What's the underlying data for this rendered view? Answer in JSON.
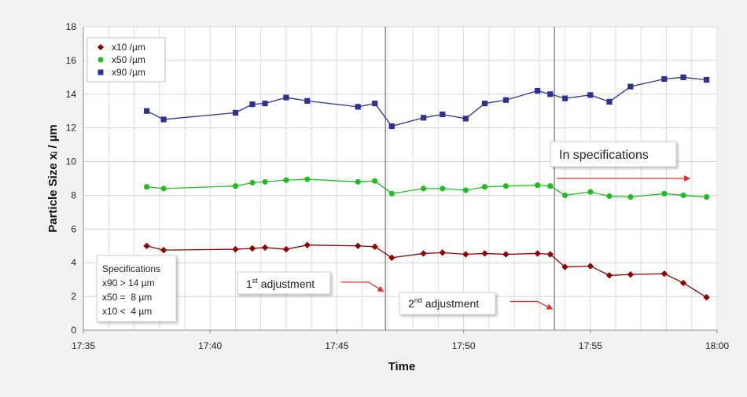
{
  "chart_data": {
    "type": "line",
    "xlabel": "Time",
    "ylabel": "Particle Size xᵢ / µm",
    "ylim": [
      0,
      18
    ],
    "xlim": [
      "17:35",
      "18:00"
    ],
    "xticks": [
      "17:35",
      "17:40",
      "17:45",
      "17:50",
      "17:55",
      "18:00"
    ],
    "yticks": [
      0,
      2,
      4,
      6,
      8,
      10,
      12,
      14,
      16,
      18
    ],
    "grid": true,
    "legend_position": "top-left",
    "series": [
      {
        "name": "x10 /µm",
        "marker": "diamond",
        "color": "#8b0000",
        "x": [
          "17:37:30",
          "17:38:10",
          "17:41:00",
          "17:41:40",
          "17:42:10",
          "17:43:00",
          "17:43:50",
          "17:45:50",
          "17:46:30",
          "17:47:10",
          "17:48:25",
          "17:49:10",
          "17:50:05",
          "17:50:50",
          "17:51:40",
          "17:52:55",
          "17:53:25",
          "17:54:00",
          "17:55:00",
          "17:55:45",
          "17:56:35",
          "17:57:55",
          "17:58:40",
          "17:59:35"
        ],
        "values": [
          5.0,
          4.75,
          4.8,
          4.85,
          4.9,
          4.8,
          5.05,
          5.0,
          4.95,
          4.3,
          4.55,
          4.6,
          4.5,
          4.55,
          4.5,
          4.55,
          4.5,
          3.75,
          3.8,
          3.25,
          3.3,
          3.35,
          2.8,
          1.95
        ]
      },
      {
        "name": "x50 /µm",
        "marker": "circle",
        "color": "#22bb22",
        "x": [
          "17:37:30",
          "17:38:10",
          "17:41:00",
          "17:41:40",
          "17:42:10",
          "17:43:00",
          "17:43:50",
          "17:45:50",
          "17:46:30",
          "17:47:10",
          "17:48:25",
          "17:49:10",
          "17:50:05",
          "17:50:50",
          "17:51:40",
          "17:52:55",
          "17:53:25",
          "17:54:00",
          "17:55:00",
          "17:55:45",
          "17:56:35",
          "17:57:55",
          "17:58:40",
          "17:59:35"
        ],
        "values": [
          8.5,
          8.4,
          8.55,
          8.75,
          8.8,
          8.9,
          8.95,
          8.8,
          8.85,
          8.1,
          8.4,
          8.4,
          8.3,
          8.5,
          8.55,
          8.6,
          8.55,
          8.0,
          8.2,
          7.95,
          7.9,
          8.1,
          8.0,
          7.9
        ]
      },
      {
        "name": "x90 /µm",
        "marker": "square",
        "color": "#2e3192",
        "x": [
          "17:37:30",
          "17:38:10",
          "17:41:00",
          "17:41:40",
          "17:42:10",
          "17:43:00",
          "17:43:50",
          "17:45:50",
          "17:46:30",
          "17:47:10",
          "17:48:25",
          "17:49:10",
          "17:50:05",
          "17:50:50",
          "17:51:40",
          "17:52:55",
          "17:53:25",
          "17:54:00",
          "17:55:00",
          "17:55:45",
          "17:56:35",
          "17:57:55",
          "17:58:40",
          "17:59:35"
        ],
        "values": [
          13.0,
          12.5,
          12.9,
          13.4,
          13.45,
          13.8,
          13.6,
          13.25,
          13.45,
          12.1,
          12.6,
          12.8,
          12.55,
          13.45,
          13.65,
          14.2,
          14.0,
          13.75,
          13.95,
          13.55,
          14.45,
          14.9,
          15.0,
          14.85
        ]
      }
    ],
    "vertical_lines": [
      "17:46:55",
      "17:53:35"
    ],
    "annotations": {
      "adjustment_1": {
        "prefix": "1",
        "superscript": "st",
        "suffix": " adjustment",
        "arrow_from": [
          "17:45:10",
          2.85
        ],
        "arrow_to": [
          "17:46:50",
          2.3
        ]
      },
      "adjustment_2": {
        "prefix": "2",
        "superscript": "nd",
        "suffix": " adjustment",
        "arrow_from": [
          "17:51:50",
          1.7
        ],
        "arrow_to": [
          "17:53:30",
          1.25
        ]
      },
      "in_spec": {
        "text": "In specifications",
        "arrow_from": [
          "17:53:40",
          9.0
        ],
        "arrow_to": [
          "17:58:55",
          9.0
        ]
      },
      "specifications_box": {
        "lines": [
          "Specifications",
          "x90 > 14 µm",
          "x50 =  8 µm",
          "x10 <  4 µm"
        ]
      }
    }
  }
}
